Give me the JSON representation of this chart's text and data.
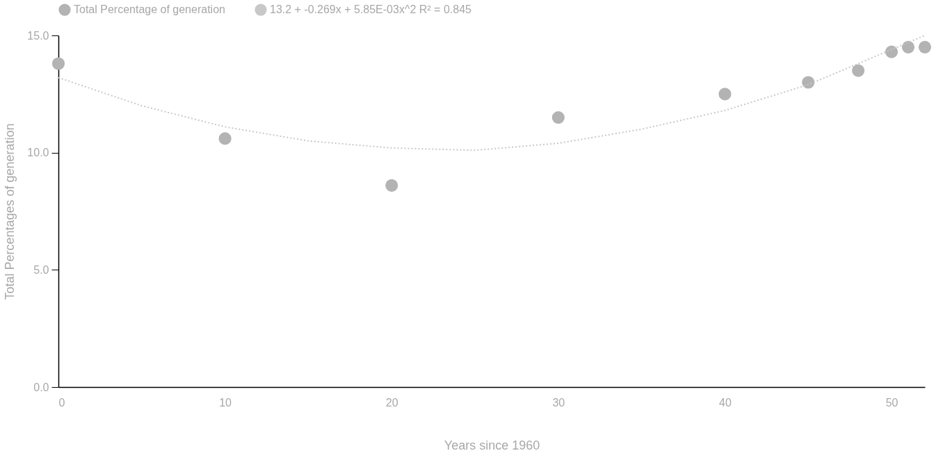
{
  "chart_data": {
    "type": "scatter",
    "xlabel": "Years since 1960",
    "ylabel": "Total Percentages of generation",
    "series": [
      {
        "name": "Total Percentage of generation",
        "color": "#b3b3b3",
        "x": [
          0,
          10,
          20,
          30,
          40,
          45,
          48,
          50,
          51,
          52
        ],
        "values": [
          13.8,
          10.6,
          8.6,
          11.5,
          12.5,
          13.0,
          13.5,
          14.3,
          14.5,
          14.5
        ]
      },
      {
        "name": "13.2 + -0.269x + 5.85E-03x^2 R² = 0.845",
        "type": "line",
        "marker": "none",
        "line_style": "dotted",
        "color": "#c8c8c8",
        "x": [
          0,
          5,
          10,
          15,
          20,
          25,
          30,
          35,
          40,
          45,
          50,
          52
        ],
        "values": [
          13.2,
          12.0,
          11.1,
          10.5,
          10.2,
          10.1,
          10.4,
          11.0,
          11.8,
          12.9,
          14.4,
          15.0
        ]
      }
    ],
    "xlim": [
      0,
      52
    ],
    "xticks": [
      0,
      10,
      20,
      30,
      40,
      50
    ],
    "ylim": [
      0,
      15
    ],
    "yticks": [
      {
        "value": 0,
        "label": "0.0"
      },
      {
        "value": 5,
        "label": "5.0"
      },
      {
        "value": 10,
        "label": "10.0"
      },
      {
        "value": 15,
        "label": "15.0"
      }
    ],
    "grid": false,
    "legend": "top left",
    "marker": "circle"
  }
}
